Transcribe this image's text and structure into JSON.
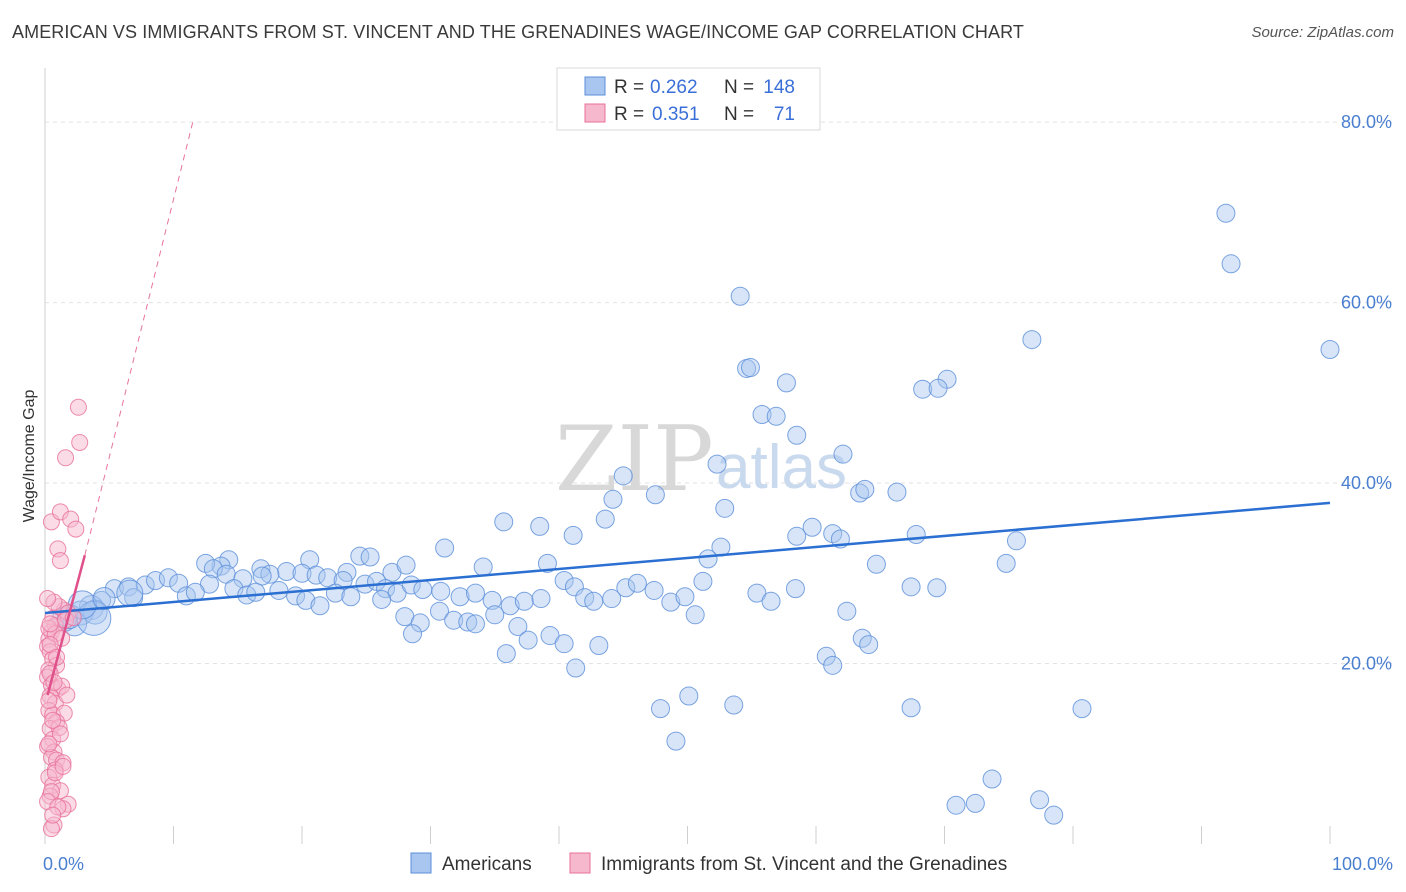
{
  "title": "AMERICAN VS IMMIGRANTS FROM ST. VINCENT AND THE GRENADINES WAGE/INCOME GAP CORRELATION CHART",
  "source": "Source: ZipAtlas.com",
  "watermark": {
    "zip": "ZIP",
    "atlas": "atlas"
  },
  "colors": {
    "americans_fill": "#a9c6f0",
    "americans_stroke": "#5b8fd9",
    "americans_line": "#2a6fd1",
    "immigrants_fill": "#f6b8cd",
    "immigrants_stroke": "#e8709a",
    "immigrants_line": "#e0508a",
    "grid": "#e2e2e2",
    "tick_label": "#4a7fd0"
  },
  "legend": {
    "rows": [
      {
        "r_label": "R =",
        "r_value": "0.262",
        "n_label": "N =",
        "n_value": "148"
      },
      {
        "r_label": "R =",
        "r_value": "0.351",
        "n_label": "N =",
        "n_value": "71"
      }
    ]
  },
  "bottom_legend": {
    "americans": "Americans",
    "immigrants": "Immigrants from St. Vincent and the Grenadines"
  },
  "chart_data": {
    "type": "scatter",
    "ylabel": "Wage/Income Gap",
    "xlabel": "",
    "xlim": [
      0,
      100
    ],
    "ylim": [
      0,
      85
    ],
    "x_ticks": [
      "0.0%",
      "100.0%"
    ],
    "y_ticks": [
      {
        "value": 20,
        "label": "20.0%"
      },
      {
        "value": 40,
        "label": "40.0%"
      },
      {
        "value": 60,
        "label": "60.0%"
      },
      {
        "value": 80,
        "label": "80.0%"
      }
    ],
    "grid": true,
    "legend_position": "top-center",
    "series": [
      {
        "name": "Americans",
        "trend": {
          "x": [
            0,
            100
          ],
          "y": [
            25.6,
            37.8
          ],
          "dashed_extension": false
        },
        "points": [
          [
            91.9,
            69.9
          ],
          [
            92.3,
            64.3
          ],
          [
            100,
            54.8
          ],
          [
            76.8,
            55.9
          ],
          [
            75.6,
            33.6
          ],
          [
            70.2,
            51.5
          ],
          [
            68.3,
            50.4
          ],
          [
            69.5,
            50.5
          ],
          [
            54.1,
            60.7
          ],
          [
            54.6,
            52.7
          ],
          [
            54.9,
            52.8
          ],
          [
            57.7,
            51.1
          ],
          [
            55.8,
            47.6
          ],
          [
            56.9,
            47.4
          ],
          [
            58.5,
            45.3
          ],
          [
            62.1,
            43.2
          ],
          [
            52.3,
            42.1
          ],
          [
            45.0,
            40.8
          ],
          [
            44.2,
            38.2
          ],
          [
            47.5,
            38.7
          ],
          [
            63.4,
            38.9
          ],
          [
            63.8,
            39.3
          ],
          [
            66.3,
            39.0
          ],
          [
            52.9,
            37.2
          ],
          [
            35.7,
            35.7
          ],
          [
            38.5,
            35.2
          ],
          [
            41.1,
            34.2
          ],
          [
            43.6,
            36.0
          ],
          [
            59.7,
            35.1
          ],
          [
            58.5,
            34.1
          ],
          [
            61.3,
            34.4
          ],
          [
            61.9,
            33.8
          ],
          [
            67.8,
            34.3
          ],
          [
            52.6,
            32.9
          ],
          [
            31.1,
            32.8
          ],
          [
            34.1,
            30.7
          ],
          [
            39.1,
            31.1
          ],
          [
            51.6,
            31.6
          ],
          [
            64.7,
            31.0
          ],
          [
            74.8,
            31.1
          ],
          [
            27.0,
            30.1
          ],
          [
            28.1,
            30.9
          ],
          [
            24.5,
            31.9
          ],
          [
            25.3,
            31.8
          ],
          [
            23.5,
            30.1
          ],
          [
            20.6,
            31.5
          ],
          [
            18.8,
            30.2
          ],
          [
            16.8,
            30.5
          ],
          [
            17.5,
            29.9
          ],
          [
            14.3,
            31.5
          ],
          [
            13.7,
            30.8
          ],
          [
            12.5,
            31.1
          ],
          [
            13.1,
            30.5
          ],
          [
            14.1,
            29.9
          ],
          [
            15.4,
            29.4
          ],
          [
            16.9,
            29.7
          ],
          [
            20.0,
            30.0
          ],
          [
            21.1,
            29.8
          ],
          [
            22.0,
            29.5
          ],
          [
            23.2,
            29.2
          ],
          [
            24.9,
            28.8
          ],
          [
            25.8,
            29.1
          ],
          [
            26.5,
            28.3
          ],
          [
            27.4,
            27.8
          ],
          [
            28.5,
            28.7
          ],
          [
            29.4,
            28.2
          ],
          [
            30.8,
            28.0
          ],
          [
            32.3,
            27.4
          ],
          [
            33.5,
            27.8
          ],
          [
            34.8,
            27.0
          ],
          [
            36.2,
            26.4
          ],
          [
            37.3,
            26.9
          ],
          [
            38.6,
            27.2
          ],
          [
            40.4,
            29.2
          ],
          [
            41.2,
            28.5
          ],
          [
            42.0,
            27.3
          ],
          [
            42.7,
            26.9
          ],
          [
            44.1,
            27.2
          ],
          [
            45.2,
            28.4
          ],
          [
            46.1,
            28.9
          ],
          [
            47.4,
            28.1
          ],
          [
            48.7,
            26.8
          ],
          [
            49.8,
            27.4
          ],
          [
            50.6,
            25.4
          ],
          [
            51.2,
            29.1
          ],
          [
            55.4,
            27.8
          ],
          [
            56.5,
            26.9
          ],
          [
            60.8,
            20.8
          ],
          [
            61.3,
            19.8
          ],
          [
            62.4,
            25.8
          ],
          [
            63.6,
            22.8
          ],
          [
            67.4,
            28.5
          ],
          [
            69.4,
            28.4
          ],
          [
            12.8,
            28.8
          ],
          [
            14.7,
            28.3
          ],
          [
            15.7,
            27.6
          ],
          [
            16.4,
            27.9
          ],
          [
            18.2,
            28.1
          ],
          [
            19.5,
            27.5
          ],
          [
            20.3,
            27.0
          ],
          [
            21.4,
            26.4
          ],
          [
            22.6,
            27.8
          ],
          [
            23.8,
            27.4
          ],
          [
            26.2,
            27.1
          ],
          [
            28.0,
            25.2
          ],
          [
            29.2,
            24.5
          ],
          [
            30.7,
            25.8
          ],
          [
            31.8,
            24.8
          ],
          [
            32.9,
            24.6
          ],
          [
            35.0,
            25.4
          ],
          [
            36.8,
            24.1
          ],
          [
            37.6,
            22.6
          ],
          [
            39.3,
            23.1
          ],
          [
            40.4,
            22.2
          ],
          [
            41.3,
            19.5
          ],
          [
            43.1,
            22.0
          ],
          [
            28.6,
            23.3
          ],
          [
            33.5,
            24.4
          ],
          [
            35.9,
            21.1
          ],
          [
            47.9,
            15.0
          ],
          [
            50.1,
            16.4
          ],
          [
            53.6,
            15.4
          ],
          [
            49.1,
            11.4
          ],
          [
            58.4,
            28.3
          ],
          [
            64.1,
            22.1
          ],
          [
            67.4,
            15.1
          ],
          [
            80.7,
            15.0
          ],
          [
            73.7,
            7.2
          ],
          [
            70.9,
            4.3
          ],
          [
            72.4,
            4.5
          ],
          [
            77.4,
            4.9
          ],
          [
            78.5,
            3.2
          ],
          [
            5.4,
            28.3
          ],
          [
            6.5,
            28.5
          ],
          [
            7.8,
            28.7
          ],
          [
            8.6,
            29.2
          ],
          [
            9.6,
            29.5
          ],
          [
            10.4,
            28.9
          ],
          [
            11.0,
            27.5
          ],
          [
            11.7,
            27.9
          ],
          [
            4.4,
            27.0
          ],
          [
            3.6,
            26.2
          ],
          [
            2.8,
            25.6
          ],
          [
            2.3,
            24.4
          ],
          [
            1.5,
            24.9
          ],
          [
            1.9,
            25.2
          ],
          [
            6.9,
            27.3
          ],
          [
            3.9,
            25.7
          ]
        ]
      },
      {
        "name": "Immigrants from St. Vincent and the Grenadines",
        "trend": {
          "x": [
            0.2,
            3.1
          ],
          "y": [
            16.5,
            32.0
          ],
          "dashed_extension": true,
          "dashed_to": [
            11.5,
            80.0
          ]
        },
        "points": [
          [
            2.6,
            48.4
          ],
          [
            2.7,
            44.5
          ],
          [
            1.6,
            42.8
          ],
          [
            0.5,
            35.7
          ],
          [
            1.2,
            36.8
          ],
          [
            2.0,
            36.0
          ],
          [
            2.4,
            34.9
          ],
          [
            1.0,
            32.7
          ],
          [
            1.2,
            31.4
          ],
          [
            0.6,
            25.0
          ],
          [
            0.8,
            24.2
          ],
          [
            0.5,
            23.5
          ],
          [
            0.3,
            22.7
          ],
          [
            0.2,
            21.9
          ],
          [
            0.4,
            21.3
          ],
          [
            0.6,
            20.5
          ],
          [
            0.9,
            19.8
          ],
          [
            0.3,
            19.3
          ],
          [
            0.2,
            18.5
          ],
          [
            0.5,
            17.6
          ],
          [
            1.0,
            17.2
          ],
          [
            1.3,
            17.5
          ],
          [
            0.4,
            16.4
          ],
          [
            0.8,
            15.6
          ],
          [
            1.7,
            16.5
          ],
          [
            0.3,
            14.8
          ],
          [
            0.6,
            14.3
          ],
          [
            1.5,
            14.5
          ],
          [
            0.9,
            13.5
          ],
          [
            0.4,
            12.8
          ],
          [
            1.1,
            12.9
          ],
          [
            0.6,
            11.6
          ],
          [
            0.2,
            10.8
          ],
          [
            0.7,
            10.2
          ],
          [
            0.5,
            9.6
          ],
          [
            0.9,
            9.3
          ],
          [
            1.4,
            9.0
          ],
          [
            0.8,
            8.2
          ],
          [
            0.3,
            7.4
          ],
          [
            0.6,
            6.5
          ],
          [
            1.2,
            5.9
          ],
          [
            0.4,
            5.3
          ],
          [
            1.8,
            4.4
          ],
          [
            1.4,
            3.9
          ],
          [
            0.7,
            2.1
          ],
          [
            0.5,
            1.7
          ],
          [
            0.3,
            23.9
          ],
          [
            0.8,
            23.3
          ],
          [
            1.3,
            22.8
          ],
          [
            0.4,
            22.1
          ],
          [
            1.5,
            25.9
          ],
          [
            1.1,
            26.3
          ],
          [
            0.7,
            26.8
          ],
          [
            1.8,
            25.6
          ],
          [
            0.2,
            27.2
          ],
          [
            0.9,
            20.7
          ],
          [
            0.4,
            18.9
          ],
          [
            1.6,
            24.8
          ],
          [
            2.2,
            25.1
          ],
          [
            0.6,
            13.7
          ],
          [
            1.2,
            12.2
          ],
          [
            0.3,
            11.1
          ],
          [
            0.8,
            7.9
          ],
          [
            0.5,
            5.8
          ],
          [
            0.2,
            4.7
          ],
          [
            1.0,
            4.1
          ],
          [
            0.6,
            3.2
          ],
          [
            1.4,
            8.6
          ],
          [
            0.3,
            15.9
          ],
          [
            0.7,
            17.9
          ],
          [
            0.4,
            24.4
          ]
        ]
      }
    ]
  }
}
